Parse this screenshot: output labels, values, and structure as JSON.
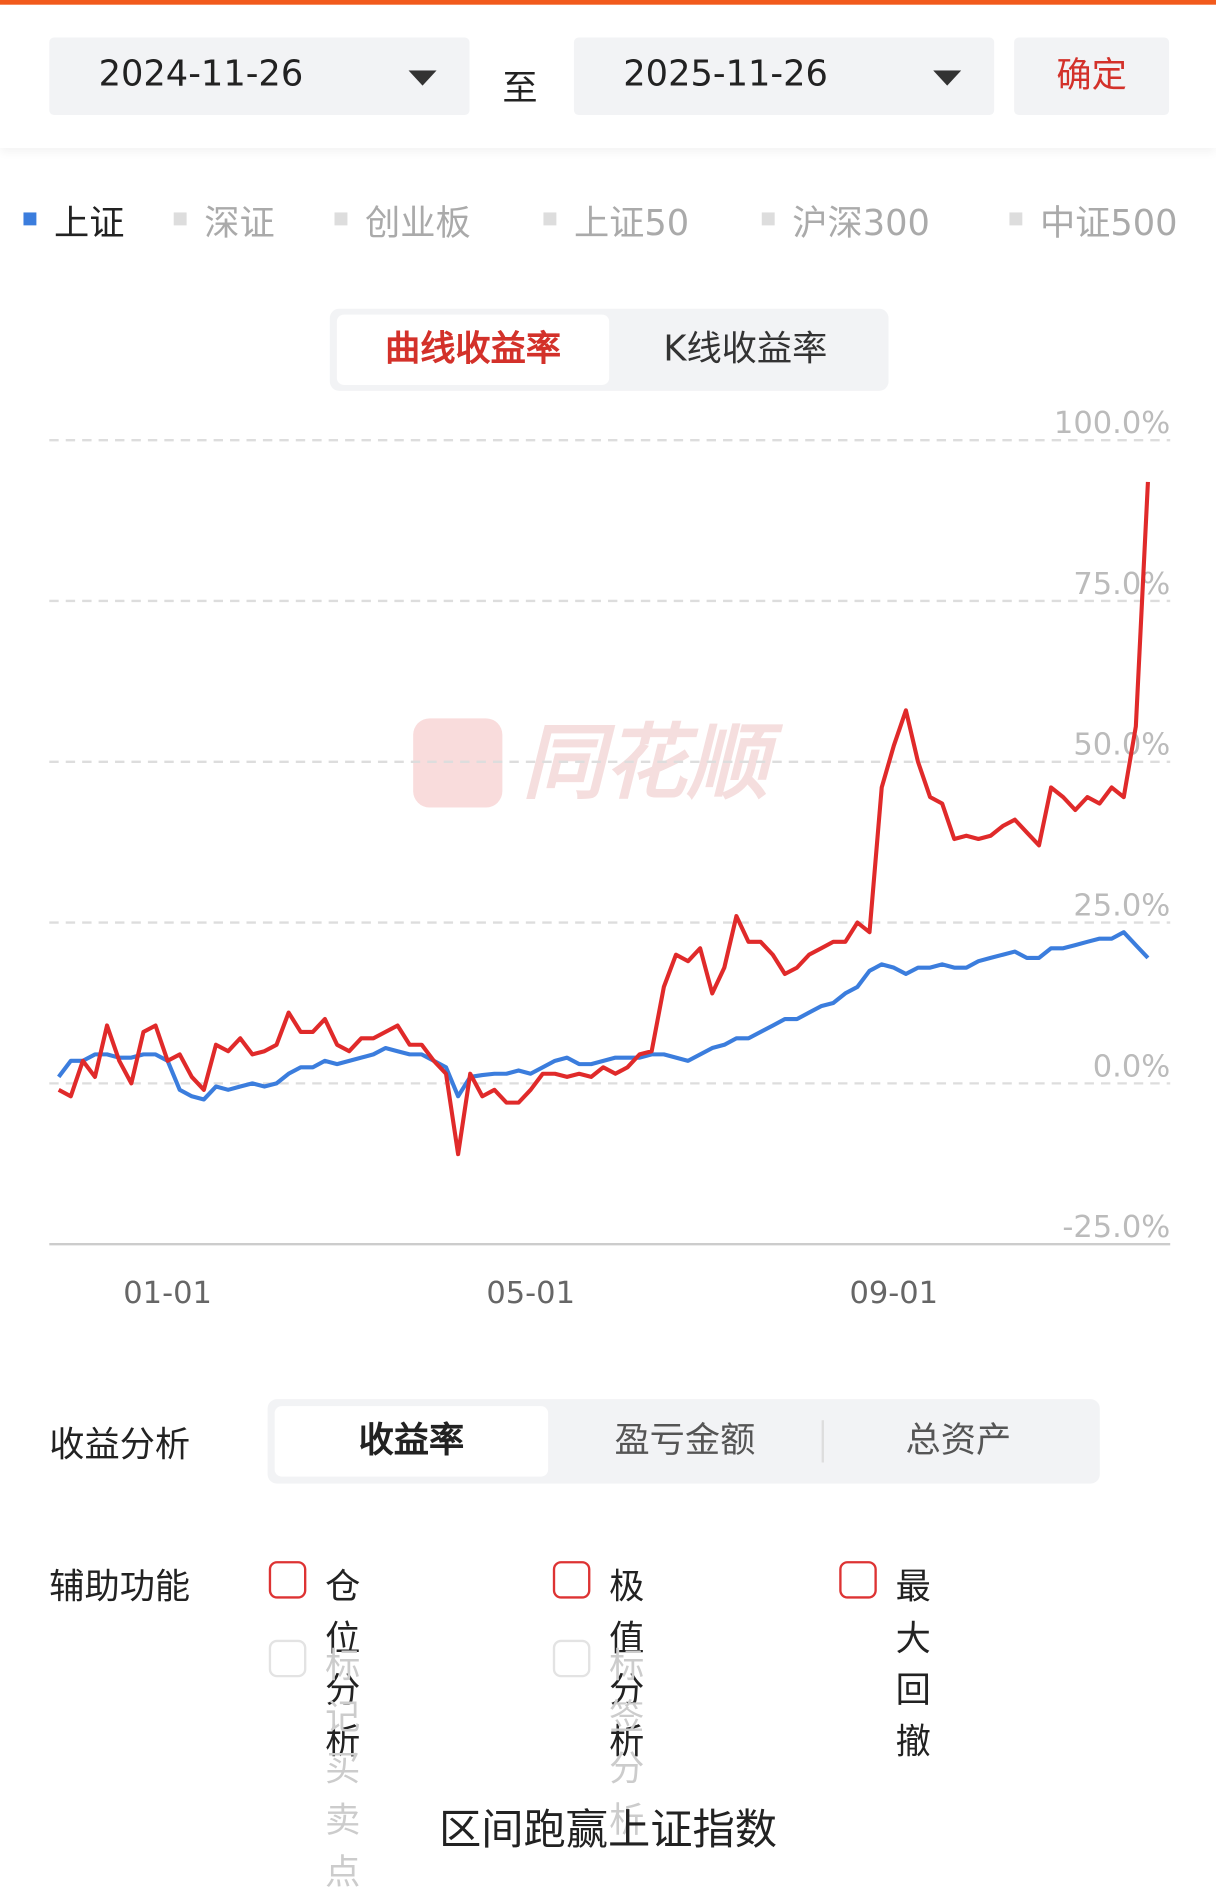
{
  "date_range": {
    "start": "2024-11-26",
    "separator": "至",
    "end": "2025-11-26",
    "confirm": "确定"
  },
  "index_tabs": [
    "上证",
    "深证",
    "创业板",
    "上证50",
    "沪深300",
    "中证500"
  ],
  "chart_tabs": [
    "曲线收益率",
    "K线收益率"
  ],
  "chart_data": {
    "type": "line",
    "watermark": "同花顺",
    "categories": [
      null,
      null,
      null,
      null,
      null,
      null,
      null,
      null,
      null,
      "01-01",
      null,
      null,
      null,
      null,
      null,
      null,
      null,
      null,
      null,
      null,
      null,
      null,
      null,
      null,
      null,
      null,
      null,
      null,
      null,
      null,
      null,
      null,
      null,
      null,
      null,
      null,
      null,
      null,
      null,
      "05-01",
      null,
      null,
      null,
      null,
      null,
      null,
      null,
      null,
      null,
      null,
      null,
      null,
      null,
      null,
      null,
      null,
      null,
      null,
      null,
      null,
      null,
      null,
      null,
      null,
      null,
      null,
      null,
      null,
      null,
      "09-01",
      null,
      null,
      null,
      null,
      null,
      null,
      null,
      null,
      null,
      null,
      null,
      null,
      null,
      null,
      null,
      null,
      null,
      null,
      null,
      null,
      null
    ],
    "series": [
      {
        "color": "#e02a2a",
        "values": [
          -1,
          -2,
          3.5,
          1,
          9,
          3.5,
          0,
          8,
          9,
          3.5,
          4.5,
          1,
          -1,
          6,
          5,
          7,
          4.5,
          5,
          6,
          11,
          8,
          8,
          10,
          6,
          5,
          7,
          7,
          8,
          9,
          6,
          6,
          3.5,
          1.5,
          -11,
          1.5,
          -2,
          -1,
          -3,
          -3,
          -1,
          1.5,
          1.5,
          1,
          1.5,
          1,
          2.5,
          1.5,
          2.5,
          4.5,
          5,
          15,
          20,
          19,
          21,
          14,
          18,
          26,
          22,
          22,
          20,
          17,
          18,
          20,
          21,
          22,
          22,
          25,
          23.5,
          46,
          52.5,
          58,
          50,
          44.5,
          43.5,
          38,
          38.5,
          38,
          38.5,
          40,
          41,
          39,
          37,
          46,
          44.5,
          42.5,
          44.5,
          43.5,
          46,
          44.5,
          55.5,
          93.5
        ]
      },
      {
        "color": "#3b7ddd",
        "values": [
          1,
          3.5,
          3.5,
          4.5,
          4.5,
          4,
          4,
          4.5,
          4.5,
          3.5,
          -1,
          -2,
          -2.5,
          -0.5,
          -1,
          -0.5,
          0,
          -0.5,
          0,
          1.5,
          2.5,
          2.5,
          3.5,
          3,
          3.5,
          4,
          4.5,
          5.5,
          5,
          4.5,
          4.5,
          3.5,
          2.5,
          -2,
          1,
          1.3,
          1.5,
          1.5,
          2,
          1.5,
          2.5,
          3.5,
          4,
          3,
          3,
          3.5,
          4,
          4,
          4,
          4.5,
          4.5,
          4,
          3.5,
          4.5,
          5.5,
          6,
          7,
          7,
          8,
          9,
          10,
          10,
          11,
          12,
          12.5,
          14,
          15,
          17.5,
          18.5,
          18,
          17,
          18,
          18,
          18.5,
          18,
          18,
          19,
          19.5,
          20,
          20.5,
          19.5,
          19.5,
          21,
          21,
          21.5,
          22,
          22.5,
          22.5,
          23.5,
          21.5,
          19.5
        ]
      }
    ],
    "ylim": [
      -25,
      100
    ],
    "yticks": [
      {
        "value": -25,
        "label": "-25.0%"
      },
      {
        "value": 0,
        "label": "0.0%"
      },
      {
        "value": 25,
        "label": "25.0%"
      },
      {
        "value": 50,
        "label": "50.0%"
      },
      {
        "value": 75,
        "label": "75.0%"
      },
      {
        "value": 100,
        "label": "100.0%"
      }
    ],
    "grid": true
  },
  "analysis": {
    "label": "收益分析",
    "tabs": [
      "收益率",
      "盈亏金额",
      "总资产"
    ]
  },
  "tools": {
    "label": "辅助功能",
    "options": [
      "仓位分析",
      "极值分析",
      "最大回撤"
    ],
    "disabled_options": [
      "标记买卖点",
      "标签分析"
    ]
  },
  "section_title": "区间跑赢上证指数"
}
